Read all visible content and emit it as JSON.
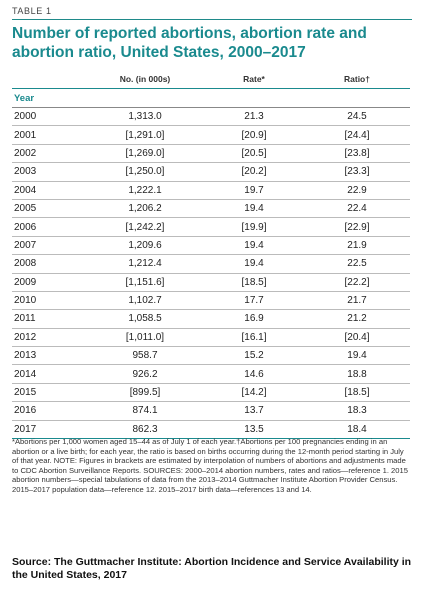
{
  "label": "TABLE 1",
  "title": "Number of reported abortions, abortion rate and abortion ratio, United States, 2000–2017",
  "columns": {
    "c2": "No. (in 000s)",
    "c3": "Rate*",
    "c4": "Ratio†"
  },
  "year_header": "Year",
  "rows": [
    [
      "2000",
      "1,313.0",
      "21.3",
      "24.5"
    ],
    [
      "2001",
      "[1,291.0]",
      "[20.9]",
      "[24.4]"
    ],
    [
      "2002",
      "[1,269.0]",
      "[20.5]",
      "[23.8]"
    ],
    [
      "2003",
      "[1,250.0]",
      "[20.2]",
      "[23.3]"
    ],
    [
      "2004",
      "1,222.1",
      "19.7",
      "22.9"
    ],
    [
      "2005",
      "1,206.2",
      "19.4",
      "22.4"
    ],
    [
      "2006",
      "[1,242.2]",
      "[19.9]",
      "[22.9]"
    ],
    [
      "2007",
      "1,209.6",
      "19.4",
      "21.9"
    ],
    [
      "2008",
      "1,212.4",
      "19.4",
      "22.5"
    ],
    [
      "2009",
      "[1,151.6]",
      "[18.5]",
      "[22.2]"
    ],
    [
      "2010",
      "1,102.7",
      "17.7",
      "21.7"
    ],
    [
      "2011",
      "1,058.5",
      "16.9",
      "21.2"
    ],
    [
      "2012",
      "[1,011.0]",
      "[16.1]",
      "[20.4]"
    ],
    [
      "2013",
      "958.7",
      "15.2",
      "19.4"
    ],
    [
      "2014",
      "926.2",
      "14.6",
      "18.8"
    ],
    [
      "2015",
      "[899.5]",
      "[14.2]",
      "[18.5]"
    ],
    [
      "2016",
      "874.1",
      "13.7",
      "18.3"
    ],
    [
      "2017",
      "862.3",
      "13.5",
      "18.4"
    ]
  ],
  "notes": "*Abortions per 1,000 women aged 15–44 as of July 1 of each year.†Abortions per 100 pregnancies ending in an abortion or a live birth; for each year, the ratio is based on births occurring during the 12-month period starting in July of that year. NOTE: Figures in brackets are estimated by interpolation of numbers of abortions and adjustments made to CDC Abortion Surveillance Reports. SOURCES: 2000–2014 abortion numbers, rates and ratios—reference 1. 2015 abortion numbers—special tabulations of data from the 2013–2014 Guttmacher Institute Abortion Provider Census. 2015–2017 population data—reference 12. 2015–2017 birth data—references 13 and 14.",
  "source": "Source: The Guttmacher Institute: Abortion Incidence and Service Availability in the United States, 2017",
  "colors": {
    "accent": "#1a8a8e"
  }
}
